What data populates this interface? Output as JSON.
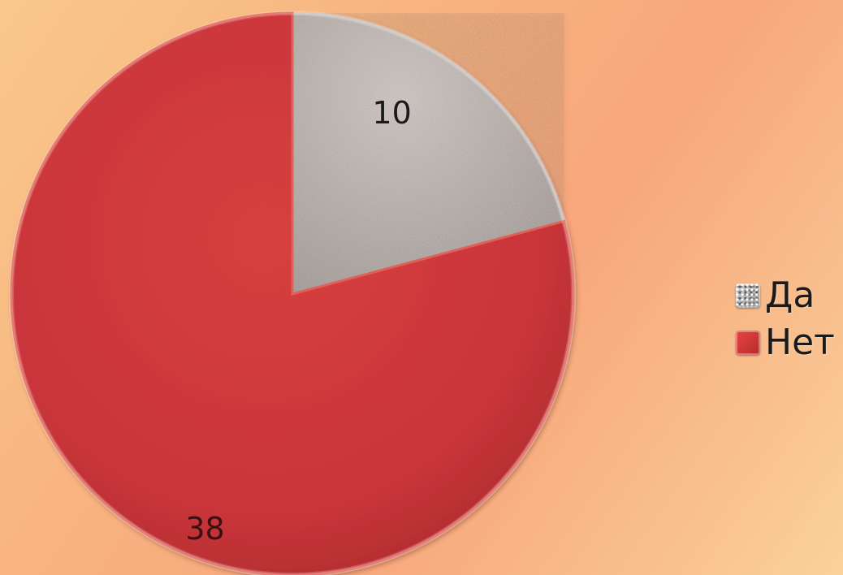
{
  "chart_data": {
    "type": "pie",
    "categories": [
      "Да",
      "Нет"
    ],
    "values": [
      10,
      38
    ],
    "data_labels": [
      "10",
      "38"
    ],
    "legend_placement": "right",
    "colors": [
      "#bdbdbd",
      "#d23b3b"
    ]
  },
  "legend": {
    "items": [
      {
        "label": "Да",
        "color": "#bdbdbd"
      },
      {
        "label": "Нет",
        "color": "#d23b3b"
      }
    ]
  }
}
